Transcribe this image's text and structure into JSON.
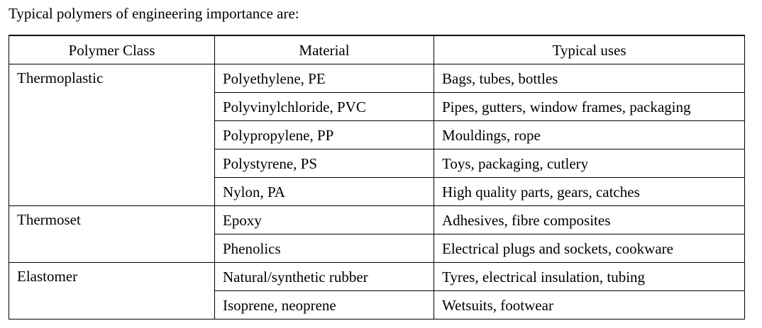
{
  "intro_text": "Typical polymers of engineering importance are:",
  "table": {
    "headers": {
      "class": "Polymer Class",
      "material": "Material",
      "uses": "Typical uses"
    },
    "groups": [
      {
        "class": "Thermoplastic",
        "rows": [
          {
            "material": "Polyethylene, PE",
            "uses": "Bags, tubes, bottles"
          },
          {
            "material": "Polyvinylchloride, PVC",
            "uses": "Pipes, gutters, window frames, packaging"
          },
          {
            "material": "Polypropylene, PP",
            "uses": "Mouldings, rope"
          },
          {
            "material": "Polystyrene, PS",
            "uses": "Toys, packaging, cutlery"
          },
          {
            "material": "Nylon, PA",
            "uses": "High quality parts, gears, catches"
          }
        ]
      },
      {
        "class": "Thermoset",
        "rows": [
          {
            "material": "Epoxy",
            "uses": "Adhesives, fibre composites"
          },
          {
            "material": "Phenolics",
            "uses": "Electrical plugs and sockets, cookware"
          }
        ]
      },
      {
        "class": "Elastomer",
        "rows": [
          {
            "material": "Natural/synthetic rubber",
            "uses": "Tyres, electrical insulation, tubing"
          },
          {
            "material": "Isoprene, neoprene",
            "uses": "Wetsuits, footwear"
          }
        ]
      }
    ]
  }
}
